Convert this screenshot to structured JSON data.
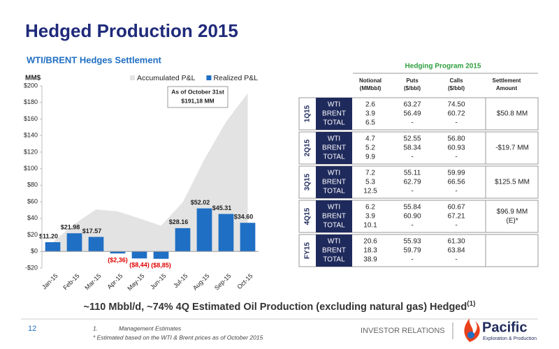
{
  "header": {
    "title": "Hedged Production 2015"
  },
  "chart_data": {
    "type": "bar",
    "title": "WTI/BRENT Hedges Settlement",
    "y_label": "MM$",
    "categories": [
      "Jan-15",
      "Feb-15",
      "Mar-15",
      "Apr-15",
      "May-15",
      "Jun-15",
      "Jul-15",
      "Aug-15",
      "Sep-15",
      "Oct-15"
    ],
    "series": [
      {
        "name": "Accumulated P&L",
        "type": "area",
        "color": "#e3e3e3",
        "values": [
          11.2,
          33.2,
          50.8,
          48.4,
          40,
          31.1,
          59.3,
          111.3,
          156.6,
          191.2
        ]
      },
      {
        "name": "Realized P&L",
        "type": "bar",
        "color": "#1f6fc4",
        "values": [
          11.2,
          21.98,
          17.57,
          -2.36,
          -8.44,
          -8.85,
          28.16,
          52.02,
          45.31,
          34.6
        ],
        "value_labels": [
          "$11.20",
          "$21.98",
          "$17.57",
          "($2,36)",
          "($8,44)",
          "($8,85)",
          "$28.16",
          "$52.02",
          "$45.31",
          "$34.60"
        ],
        "negative_label_color": "#e00000"
      }
    ],
    "ylim": [
      -20,
      200
    ],
    "yticks": [
      {
        "value": -20,
        "label": "-$20"
      },
      {
        "value": 0,
        "label": "$0"
      },
      {
        "value": 20,
        "label": "$20"
      },
      {
        "value": 40,
        "label": "$40"
      },
      {
        "value": 60,
        "label": "$60"
      },
      {
        "value": 80,
        "label": "$80"
      },
      {
        "value": 100,
        "label": "$100"
      },
      {
        "value": 120,
        "label": "$120"
      },
      {
        "value": 140,
        "label": "$140"
      },
      {
        "value": 160,
        "label": "$160"
      },
      {
        "value": 180,
        "label": "$180"
      },
      {
        "value": 200,
        "label": "$200"
      }
    ],
    "annotation": [
      "As of October 31st",
      "$191,18 MM"
    ]
  },
  "table": {
    "title": "Hedging Program 2015",
    "columns": [
      [
        "Notional",
        "(MMbbl)"
      ],
      [
        "Puts",
        "($/bbl)"
      ],
      [
        "Calls",
        "($/bbl)"
      ],
      [
        "Settlement",
        "Amount"
      ]
    ],
    "groups": [
      {
        "period": "1Q15",
        "products": [
          "WTI",
          "BRENT",
          "TOTAL"
        ],
        "notional": [
          "2.6",
          "3.9",
          "6.5"
        ],
        "puts": [
          "63.27",
          "56.49",
          "-"
        ],
        "calls": [
          "74.50",
          "60.72",
          "-"
        ],
        "settlement": [
          "$50.8 MM"
        ]
      },
      {
        "period": "2Q15",
        "products": [
          "WTI",
          "BRENT",
          "TOTAL"
        ],
        "notional": [
          "4.7",
          "5.2",
          "9.9"
        ],
        "puts": [
          "52.55",
          "58.34",
          "-"
        ],
        "calls": [
          "56.80",
          "60.93",
          "-"
        ],
        "settlement": [
          "-$19.7 MM"
        ]
      },
      {
        "period": "3Q15",
        "products": [
          "WTI",
          "BRENT",
          "TOTAL"
        ],
        "notional": [
          "7.2",
          "5.3",
          "12.5"
        ],
        "puts": [
          "55.11",
          "62.79",
          "-"
        ],
        "calls": [
          "59.99",
          "66.56",
          "-"
        ],
        "settlement": [
          "$125.5 MM"
        ]
      },
      {
        "period": "4Q15",
        "products": [
          "WTI",
          "BRENT",
          "TOTAL"
        ],
        "notional": [
          "6.2",
          "3.9",
          "10.1"
        ],
        "puts": [
          "55.84",
          "60.90",
          "-"
        ],
        "calls": [
          "60.67",
          "67.21",
          "-"
        ],
        "settlement": [
          "$96.9 MM",
          "(E)*"
        ]
      },
      {
        "period": "FY15",
        "products": [
          "WTI",
          "BRENT",
          "TOTAL"
        ],
        "notional": [
          "20.6",
          "18.3",
          "38.9"
        ],
        "puts": [
          "55.93",
          "59.79",
          "-"
        ],
        "calls": [
          "61.30",
          "63.84",
          "-"
        ]
      }
    ]
  },
  "summary": {
    "text": "~110 Mbbl/d, ~74% 4Q Estimated Oil Production (excluding natural gas) Hedged",
    "note_ref": "(1)"
  },
  "footer": {
    "page": "12",
    "note_number": "1.",
    "note": "Management Estimates",
    "asterisk_note": "*  Estimated based on the WTI & Brent prices as of October 2015",
    "section": "INVESTOR RELATIONS",
    "logo": "Pacific",
    "logo_sub": "Exploration & Production"
  }
}
